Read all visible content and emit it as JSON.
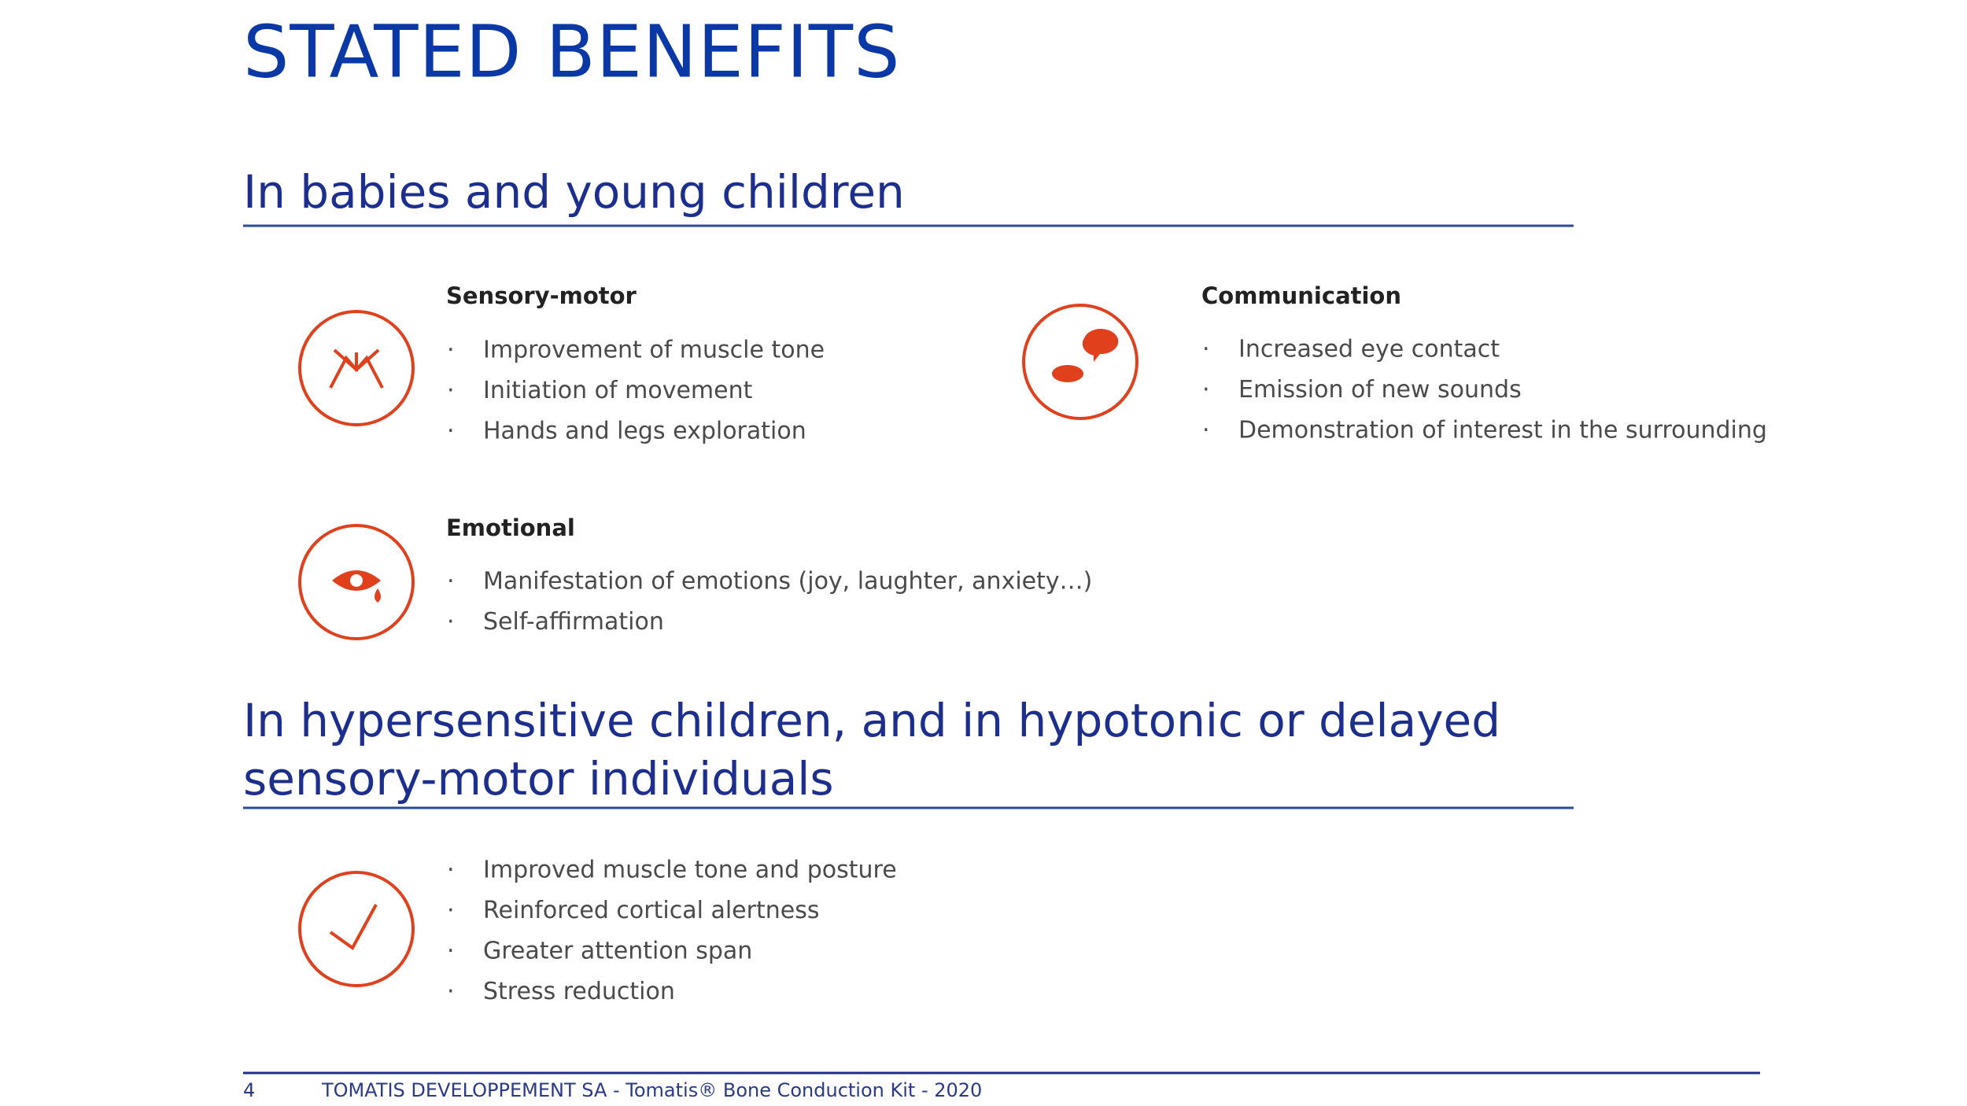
{
  "title": "STATED BENEFITS",
  "sections": [
    {
      "heading": "In babies and young children",
      "groups": [
        {
          "title": "Sensory-motor",
          "items": [
            "Improvement of muscle tone",
            "Initiation of movement",
            "Hands and legs exploration"
          ]
        },
        {
          "title": "Communication",
          "items": [
            "Increased eye contact",
            "Emission of new sounds",
            "Demonstration of interest in the surrounding"
          ]
        },
        {
          "title": "Emotional",
          "items": [
            "Manifestation of emotions (joy, laughter, anxiety…)",
            "Self-affirmation"
          ]
        }
      ]
    },
    {
      "heading": [
        "In hypersensitive children, and in hypotonic or delayed",
        "sensory-motor individuals"
      ],
      "items": [
        "Improved muscle tone and posture",
        "Reinforced cortical alertness",
        "Greater attention span",
        "Stress reduction"
      ]
    }
  ],
  "footer": {
    "page": "4",
    "text": "TOMATIS DEVELOPPEMENT SA - Tomatis® Bone Conduction Kit - 2020"
  }
}
